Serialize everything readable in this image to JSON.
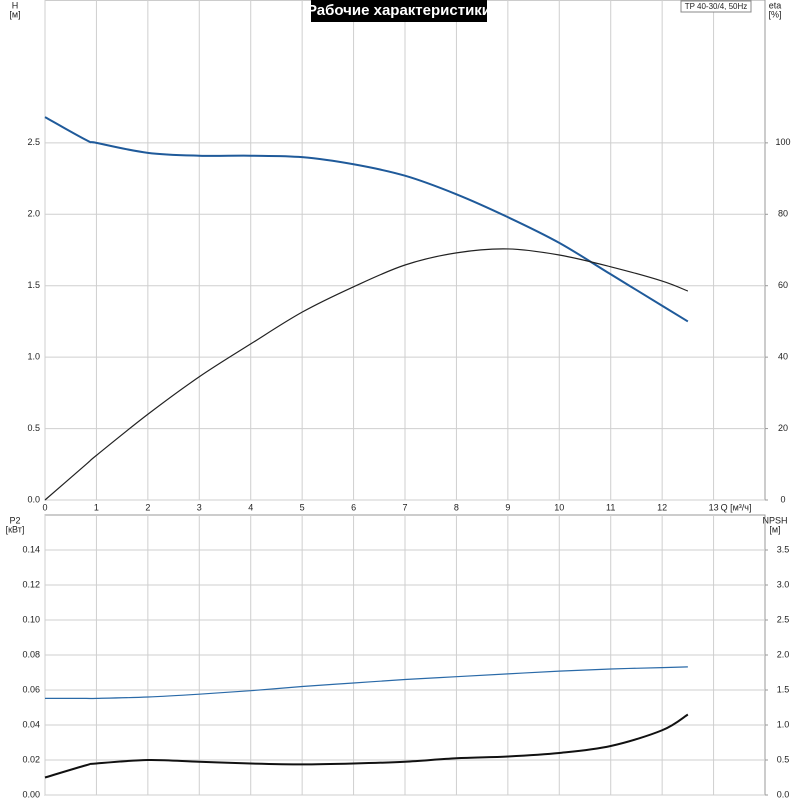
{
  "chart_data": [
    {
      "type": "line",
      "title": "Рабочие характеристики",
      "note": "TP 40-30/4, 50Hz",
      "y_label": "H",
      "y_unit": "[м]",
      "y2_label": "eta",
      "y2_unit": "[%]",
      "x_label": "Q [м³/ч]",
      "x": [
        0,
        0.8,
        1,
        2,
        3,
        4,
        5,
        6,
        7,
        8,
        9,
        10,
        11,
        12,
        12.5
      ],
      "xlim": [
        0,
        14
      ],
      "xticks": [
        0,
        1,
        2,
        3,
        4,
        5,
        6,
        7,
        8,
        9,
        10,
        11,
        12,
        13
      ],
      "ylim": [
        0,
        3.5
      ],
      "yticks": [
        {
          "value": 0,
          "label": "0.0"
        },
        0.5,
        {
          "value": 1,
          "label": "1.0"
        },
        1.5,
        {
          "value": 2,
          "label": "2.0"
        },
        2.5
      ],
      "y2lim": [
        0,
        140
      ],
      "y2ticks": [
        0,
        20,
        40,
        60,
        80,
        100
      ],
      "series": [
        {
          "name": "H",
          "color": "#1f5a9a",
          "values": [
            2.68,
            2.52,
            2.5,
            2.43,
            2.41,
            2.41,
            2.4,
            2.35,
            2.27,
            2.14,
            1.98,
            1.8,
            1.58,
            1.36,
            1.25
          ]
        },
        {
          "name": "eta",
          "color": "#222222",
          "axis": "y2",
          "values": [
            0,
            10,
            12.5,
            24,
            34.5,
            43.7,
            52.6,
            59.7,
            65.8,
            69.2,
            70.3,
            68.6,
            65.3,
            61.3,
            58.5
          ]
        }
      ]
    },
    {
      "type": "line",
      "y_label": "P2",
      "y_unit": "[кВт]",
      "y2_label": "NPSH",
      "y2_unit": "[м]",
      "x": [
        0,
        0.8,
        1,
        2,
        3,
        4,
        5,
        6,
        7,
        8,
        9,
        10,
        11,
        12,
        12.5
      ],
      "xlim": [
        0,
        14
      ],
      "xticks": [
        0,
        1,
        2,
        3,
        4,
        5,
        6,
        7,
        8,
        9,
        10,
        11,
        12,
        13
      ],
      "ylim": [
        0,
        0.16
      ],
      "yticks": [
        {
          "value": 0,
          "label": "0.00"
        },
        {
          "value": 0.02,
          "label": "0.02"
        },
        {
          "value": 0.04,
          "label": "0.04"
        },
        {
          "value": 0.06,
          "label": "0.06"
        },
        {
          "value": 0.08,
          "label": "0.08"
        },
        {
          "value": 0.1,
          "label": "0.10"
        },
        {
          "value": 0.12,
          "label": "0.12"
        },
        {
          "value": 0.14,
          "label": "0.14"
        }
      ],
      "y2lim": [
        0,
        4
      ],
      "y2ticks": [
        {
          "value": 0,
          "label": "0.0"
        },
        0.5,
        {
          "value": 1,
          "label": "1.0"
        },
        1.5,
        {
          "value": 2,
          "label": "2.0"
        },
        2.5,
        {
          "value": 3,
          "label": "3.0"
        },
        3.5
      ],
      "series": [
        {
          "name": "P2",
          "color": "#111111",
          "values": [
            0.01,
            0.017,
            0.018,
            0.02,
            0.019,
            0.018,
            0.0175,
            0.018,
            0.019,
            0.021,
            0.022,
            0.024,
            0.028,
            0.037,
            0.046
          ]
        },
        {
          "name": "NPSH",
          "color": "#2a6aa8",
          "axis": "y2",
          "values": [
            1.38,
            1.38,
            1.38,
            1.4,
            1.44,
            1.49,
            1.55,
            1.6,
            1.65,
            1.69,
            1.73,
            1.77,
            1.8,
            1.82,
            1.83
          ]
        }
      ]
    }
  ]
}
